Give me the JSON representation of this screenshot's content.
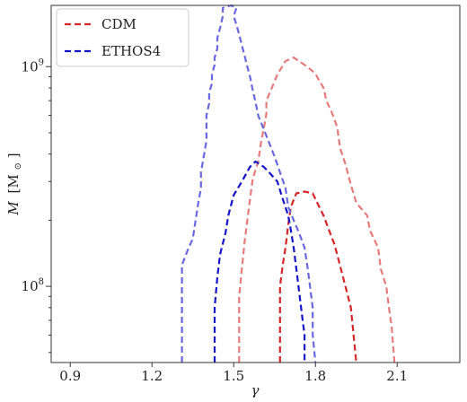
{
  "chart_data": {
    "type": "contour",
    "xlabel": "γ",
    "ylabel_main": "M",
    "ylabel_unit": "[M",
    "ylabel_sub": "⊙",
    "ylabel_close": "]",
    "xlim": [
      0.83,
      2.33
    ],
    "ylim": [
      45000000,
      1900000000
    ],
    "yscale": "log",
    "grid": false,
    "legend_position": "top-left",
    "x_ticks": [
      {
        "value": 0.9,
        "label": "0.9"
      },
      {
        "value": 1.2,
        "label": "1.2"
      },
      {
        "value": 1.5,
        "label": "1.5"
      },
      {
        "value": 1.8,
        "label": "1.8"
      },
      {
        "value": 2.1,
        "label": "2.1"
      }
    ],
    "y_ticks": [
      {
        "value": 100000000,
        "base": "10",
        "exp": "8"
      },
      {
        "value": 1000000000,
        "base": "10",
        "exp": "9"
      }
    ],
    "legend": [
      {
        "label": "CDM",
        "color": "#d62728"
      },
      {
        "label": "ETHOS4",
        "color": "#1515c8"
      }
    ],
    "series": [
      {
        "name": "CDM",
        "level": "outer",
        "color": "#e87a7a",
        "points": [
          [
            1.52,
            45000000
          ],
          [
            1.52,
            60000000
          ],
          [
            1.52,
            90000000
          ],
          [
            1.53,
            120000000
          ],
          [
            1.54,
            160000000
          ],
          [
            1.55,
            200000000
          ],
          [
            1.56,
            250000000
          ],
          [
            1.57,
            310000000
          ],
          [
            1.59,
            370000000
          ],
          [
            1.6,
            450000000
          ],
          [
            1.61,
            520000000
          ],
          [
            1.62,
            610000000
          ],
          [
            1.62,
            700000000
          ],
          [
            1.64,
            800000000
          ],
          [
            1.66,
            920000000
          ],
          [
            1.69,
            1060000000
          ],
          [
            1.72,
            1100000000
          ],
          [
            1.74,
            1060000000
          ],
          [
            1.77,
            1000000000
          ],
          [
            1.8,
            930000000
          ],
          [
            1.81,
            880000000
          ],
          [
            1.83,
            800000000
          ],
          [
            1.84,
            700000000
          ],
          [
            1.86,
            620000000
          ],
          [
            1.88,
            530000000
          ],
          [
            1.89,
            430000000
          ],
          [
            1.91,
            360000000
          ],
          [
            1.93,
            290000000
          ],
          [
            1.95,
            240000000
          ],
          [
            1.99,
            210000000
          ],
          [
            2.0,
            180000000
          ],
          [
            2.03,
            150000000
          ],
          [
            2.04,
            120000000
          ],
          [
            2.06,
            100000000
          ],
          [
            2.07,
            80000000
          ],
          [
            2.08,
            65000000
          ],
          [
            2.09,
            45000000
          ]
        ]
      },
      {
        "name": "CDM",
        "level": "inner",
        "color": "#d62728",
        "points": [
          [
            1.67,
            45000000
          ],
          [
            1.67,
            60000000
          ],
          [
            1.67,
            80000000
          ],
          [
            1.67,
            100000000
          ],
          [
            1.68,
            125000000
          ],
          [
            1.69,
            150000000
          ],
          [
            1.7,
            190000000
          ],
          [
            1.71,
            230000000
          ],
          [
            1.73,
            265000000
          ],
          [
            1.76,
            270000000
          ],
          [
            1.79,
            265000000
          ],
          [
            1.81,
            235000000
          ],
          [
            1.83,
            210000000
          ],
          [
            1.85,
            180000000
          ],
          [
            1.87,
            155000000
          ],
          [
            1.89,
            125000000
          ],
          [
            1.91,
            100000000
          ],
          [
            1.93,
            80000000
          ],
          [
            1.94,
            60000000
          ],
          [
            1.95,
            45000000
          ]
        ]
      },
      {
        "name": "ETHOS4",
        "level": "outer",
        "color": "#6868e0",
        "points": [
          [
            1.31,
            45000000
          ],
          [
            1.31,
            60000000
          ],
          [
            1.31,
            90000000
          ],
          [
            1.31,
            125000000
          ],
          [
            1.33,
            145000000
          ],
          [
            1.35,
            165000000
          ],
          [
            1.36,
            200000000
          ],
          [
            1.37,
            240000000
          ],
          [
            1.38,
            280000000
          ],
          [
            1.38,
            330000000
          ],
          [
            1.39,
            390000000
          ],
          [
            1.4,
            460000000
          ],
          [
            1.4,
            530000000
          ],
          [
            1.4,
            600000000
          ],
          [
            1.41,
            680000000
          ],
          [
            1.41,
            760000000
          ],
          [
            1.42,
            840000000
          ],
          [
            1.42,
            920000000
          ],
          [
            1.43,
            1020000000
          ],
          [
            1.43,
            1100000000
          ],
          [
            1.44,
            1210000000
          ],
          [
            1.44,
            1350000000
          ],
          [
            1.45,
            1500000000
          ],
          [
            1.46,
            1700000000
          ],
          [
            1.46,
            1850000000
          ],
          [
            1.49,
            1900000000
          ],
          [
            1.51,
            1850000000
          ],
          [
            1.5,
            1700000000
          ],
          [
            1.51,
            1550000000
          ],
          [
            1.52,
            1400000000
          ],
          [
            1.53,
            1250000000
          ],
          [
            1.54,
            1120000000
          ],
          [
            1.55,
            1000000000
          ],
          [
            1.56,
            900000000
          ],
          [
            1.57,
            780000000
          ],
          [
            1.58,
            690000000
          ],
          [
            1.59,
            600000000
          ],
          [
            1.61,
            520000000
          ],
          [
            1.63,
            450000000
          ],
          [
            1.65,
            390000000
          ],
          [
            1.67,
            330000000
          ],
          [
            1.69,
            280000000
          ],
          [
            1.7,
            230000000
          ],
          [
            1.72,
            200000000
          ],
          [
            1.74,
            175000000
          ],
          [
            1.76,
            150000000
          ],
          [
            1.77,
            125000000
          ],
          [
            1.78,
            100000000
          ],
          [
            1.79,
            80000000
          ],
          [
            1.79,
            60000000
          ],
          [
            1.8,
            45000000
          ]
        ]
      },
      {
        "name": "ETHOS4",
        "level": "inner",
        "color": "#1515c8",
        "points": [
          [
            1.43,
            45000000
          ],
          [
            1.43,
            60000000
          ],
          [
            1.43,
            80000000
          ],
          [
            1.44,
            110000000
          ],
          [
            1.45,
            140000000
          ],
          [
            1.47,
            175000000
          ],
          [
            1.48,
            210000000
          ],
          [
            1.5,
            260000000
          ],
          [
            1.53,
            300000000
          ],
          [
            1.56,
            350000000
          ],
          [
            1.58,
            370000000
          ],
          [
            1.61,
            350000000
          ],
          [
            1.63,
            330000000
          ],
          [
            1.66,
            300000000
          ],
          [
            1.68,
            250000000
          ],
          [
            1.7,
            210000000
          ],
          [
            1.71,
            180000000
          ],
          [
            1.72,
            150000000
          ],
          [
            1.73,
            120000000
          ],
          [
            1.74,
            95000000
          ],
          [
            1.75,
            75000000
          ],
          [
            1.76,
            60000000
          ],
          [
            1.76,
            45000000
          ]
        ]
      }
    ]
  }
}
